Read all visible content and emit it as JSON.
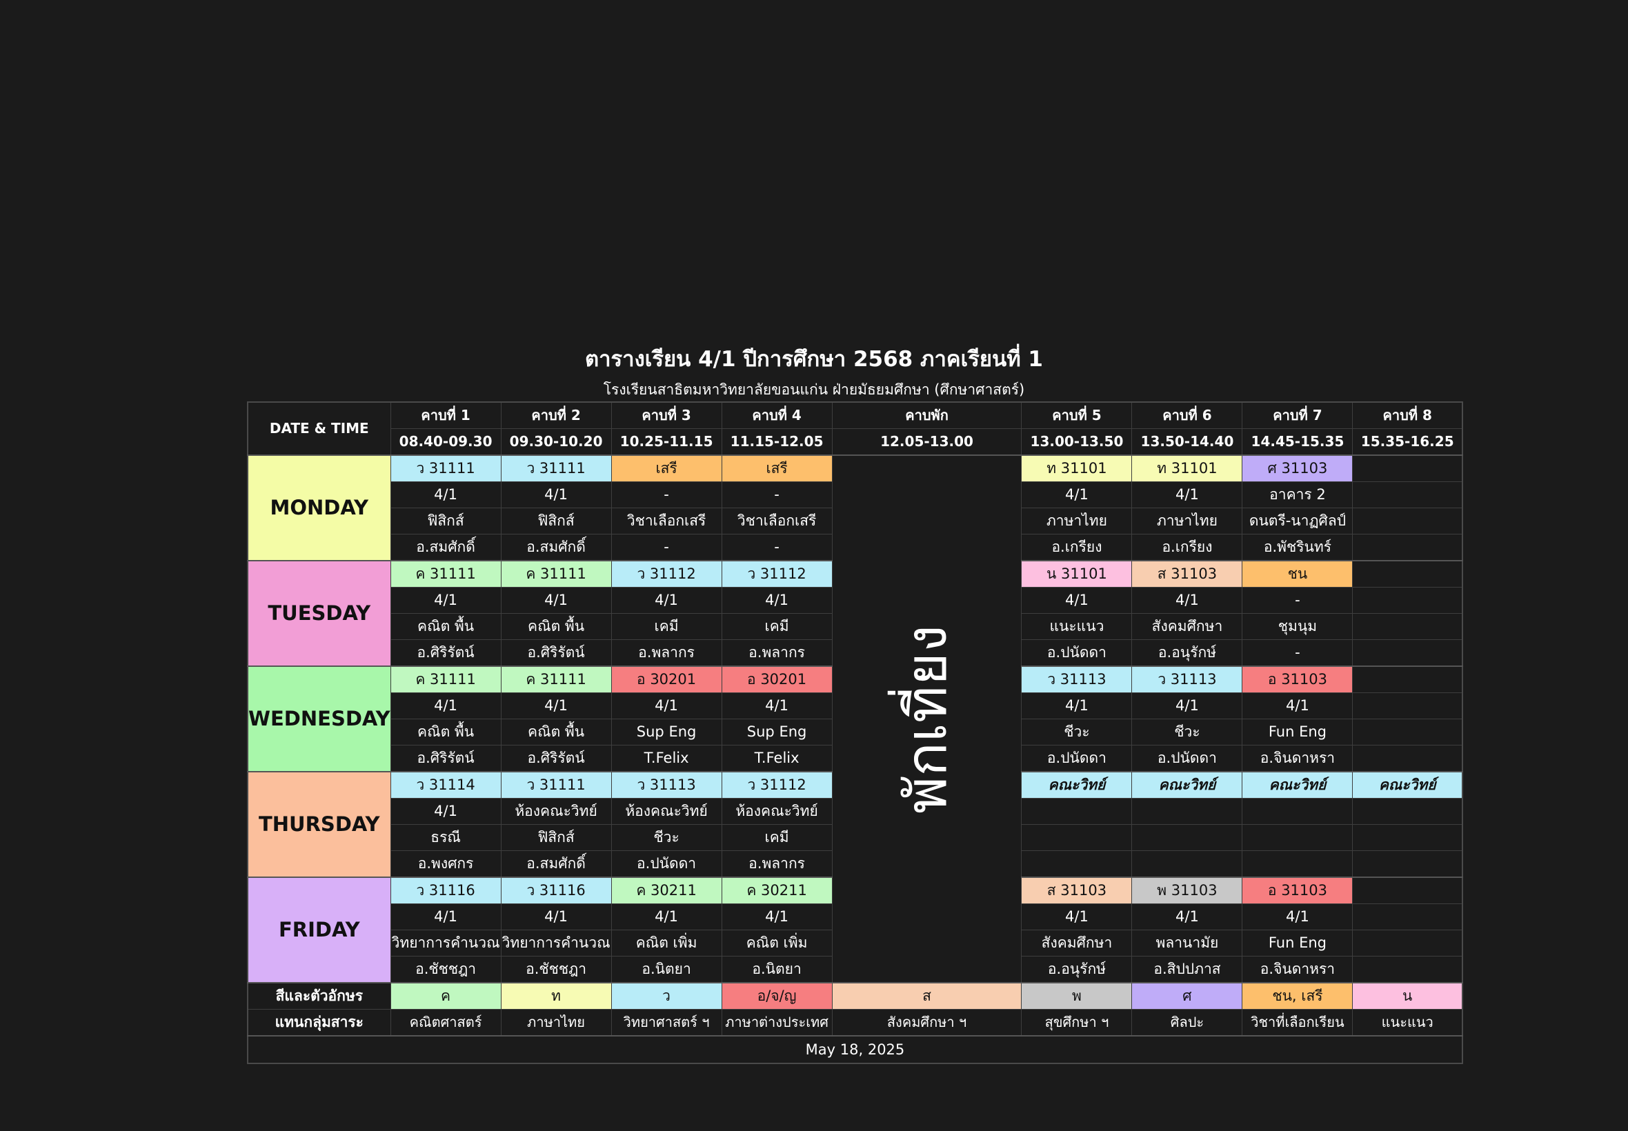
{
  "title": "ตารางเรียน 4/1 ปีการศึกษา 2568 ภาคเรียนที่ 1",
  "subtitle": "โรงเรียนสาธิตมหาวิทยาลัยขอนแก่น ฝ่ายมัธยมศึกษา (ศึกษาศาสตร์)",
  "header": {
    "date_time": "DATE & TIME",
    "periods": [
      {
        "name": "คาบที่ 1",
        "time": "08.40-09.30"
      },
      {
        "name": "คาบที่ 2",
        "time": "09.30-10.20"
      },
      {
        "name": "คาบที่ 3",
        "time": "10.25-11.15"
      },
      {
        "name": "คาบที่ 4",
        "time": "11.15-12.05"
      },
      {
        "name": "คาบพัก",
        "time": "12.05-13.00"
      },
      {
        "name": "คาบที่ 5",
        "time": "13.00-13.50"
      },
      {
        "name": "คาบที่ 6",
        "time": "13.50-14.40"
      },
      {
        "name": "คาบที่ 7",
        "time": "14.45-15.35"
      },
      {
        "name": "คาบที่ 8",
        "time": "15.35-16.25"
      }
    ]
  },
  "lunch_label": "พักเที่ยง",
  "days": [
    {
      "day": "MONDAY",
      "cells": [
        {
          "code": "ว 31111",
          "color": "#b8ecf8",
          "room": "4/1",
          "subject": "ฟิสิกส์",
          "teacher": "อ.สมศักดิ์"
        },
        {
          "code": "ว 31111",
          "color": "#b8ecf8",
          "room": "4/1",
          "subject": "ฟิสิกส์",
          "teacher": "อ.สมศักดิ์"
        },
        {
          "code": "เสรี",
          "color": "#fdbf6c",
          "room": "-",
          "subject": "วิชาเลือกเสรี",
          "teacher": "-"
        },
        {
          "code": "เสรี",
          "color": "#fdbf6c",
          "room": "-",
          "subject": "วิชาเลือกเสรี",
          "teacher": "-"
        },
        {
          "code": "ท 31101",
          "color": "#f7fbb4",
          "room": "4/1",
          "subject": "ภาษาไทย",
          "teacher": "อ.เกรียง"
        },
        {
          "code": "ท 31101",
          "color": "#f7fbb4",
          "room": "4/1",
          "subject": "ภาษาไทย",
          "teacher": "อ.เกรียง"
        },
        {
          "code": "ศ 31103",
          "color": "#bfacf8",
          "room": "อาคาร 2",
          "subject": "ดนตรี-นาฏศิลป์",
          "teacher": "อ.พัชรินทร์"
        },
        {
          "code": "",
          "color": "",
          "room": "",
          "subject": "",
          "teacher": ""
        }
      ]
    },
    {
      "day": "TUESDAY",
      "cells": [
        {
          "code": "ค 31111",
          "color": "#c0f8c0",
          "room": "4/1",
          "subject": "คณิต พื้น",
          "teacher": "อ.ศิริรัตน์"
        },
        {
          "code": "ค 31111",
          "color": "#c0f8c0",
          "room": "4/1",
          "subject": "คณิต พื้น",
          "teacher": "อ.ศิริรัตน์"
        },
        {
          "code": "ว 31112",
          "color": "#b8ecf8",
          "room": "4/1",
          "subject": "เคมี",
          "teacher": "อ.พลากร"
        },
        {
          "code": "ว 31112",
          "color": "#b8ecf8",
          "room": "4/1",
          "subject": "เคมี",
          "teacher": "อ.พลากร"
        },
        {
          "code": "น 31101",
          "color": "#fdc0e0",
          "room": "4/1",
          "subject": "แนะแนว",
          "teacher": "อ.ปนัดดา"
        },
        {
          "code": "ส 31103",
          "color": "#f8ceb0",
          "room": "4/1",
          "subject": "สังคมศึกษา",
          "teacher": "อ.อนุรักษ์"
        },
        {
          "code": "ชน",
          "color": "#fdbf6c",
          "room": "-",
          "subject": "ชุมนุม",
          "teacher": "-"
        },
        {
          "code": "",
          "color": "",
          "room": "",
          "subject": "",
          "teacher": ""
        }
      ]
    },
    {
      "day": "WEDNESDAY",
      "cells": [
        {
          "code": "ค 31111",
          "color": "#c0f8c0",
          "room": "4/1",
          "subject": "คณิต พื้น",
          "teacher": "อ.ศิริรัตน์"
        },
        {
          "code": "ค 31111",
          "color": "#c0f8c0",
          "room": "4/1",
          "subject": "คณิต พื้น",
          "teacher": "อ.ศิริรัตน์"
        },
        {
          "code": "อ 30201",
          "color": "#f67e80",
          "room": "4/1",
          "subject": "Sup Eng",
          "teacher": "T.Felix"
        },
        {
          "code": "อ 30201",
          "color": "#f67e80",
          "room": "4/1",
          "subject": "Sup Eng",
          "teacher": "T.Felix"
        },
        {
          "code": "ว 31113",
          "color": "#b8ecf8",
          "room": "4/1",
          "subject": "ชีวะ",
          "teacher": "อ.ปนัดดา"
        },
        {
          "code": "ว 31113",
          "color": "#b8ecf8",
          "room": "4/1",
          "subject": "ชีวะ",
          "teacher": "อ.ปนัดดา"
        },
        {
          "code": "อ 31103",
          "color": "#f67e80",
          "room": "4/1",
          "subject": "Fun Eng",
          "teacher": "อ.จินดาหรา"
        },
        {
          "code": "",
          "color": "",
          "room": "",
          "subject": "",
          "teacher": ""
        }
      ]
    },
    {
      "day": "THURSDAY",
      "cells": [
        {
          "code": "ว 31114",
          "color": "#b8ecf8",
          "room": "4/1",
          "subject": "ธรณี",
          "teacher": "อ.พงศกร"
        },
        {
          "code": "ว 31111",
          "color": "#b8ecf8",
          "room": "ห้องคณะวิทย์",
          "subject": "ฟิสิกส์",
          "teacher": "อ.สมศักดิ์"
        },
        {
          "code": "ว 31113",
          "color": "#b8ecf8",
          "room": "ห้องคณะวิทย์",
          "subject": "ชีวะ",
          "teacher": "อ.ปนัดดา"
        },
        {
          "code": "ว 31112",
          "color": "#b8ecf8",
          "room": "ห้องคณะวิทย์",
          "subject": "เคมี",
          "teacher": "อ.พลากร"
        },
        {
          "code": "คณะวิทย์",
          "color": "#b8ecf8",
          "group": true,
          "room": "",
          "subject": "",
          "teacher": ""
        },
        {
          "code": "คณะวิทย์",
          "color": "#b8ecf8",
          "group": true,
          "room": "",
          "subject": "",
          "teacher": ""
        },
        {
          "code": "คณะวิทย์",
          "color": "#b8ecf8",
          "group": true,
          "room": "",
          "subject": "",
          "teacher": ""
        },
        {
          "code": "คณะวิทย์",
          "color": "#b8ecf8",
          "group": true,
          "room": "",
          "subject": "",
          "teacher": ""
        }
      ]
    },
    {
      "day": "FRIDAY",
      "cells": [
        {
          "code": "ว 31116",
          "color": "#b8ecf8",
          "room": "4/1",
          "subject": "วิทยาการคำนวณ",
          "teacher": "อ.ชัชชฎา"
        },
        {
          "code": "ว 31116",
          "color": "#b8ecf8",
          "room": "4/1",
          "subject": "วิทยาการคำนวณ",
          "teacher": "อ.ชัชชฎา"
        },
        {
          "code": "ค 30211",
          "color": "#c0f8c0",
          "room": "4/1",
          "subject": "คณิต เพิ่ม",
          "teacher": "อ.นิตยา"
        },
        {
          "code": "ค 30211",
          "color": "#c0f8c0",
          "room": "4/1",
          "subject": "คณิต เพิ่ม",
          "teacher": "อ.นิตยา"
        },
        {
          "code": "ส 31103",
          "color": "#f8ceb0",
          "room": "4/1",
          "subject": "สังคมศึกษา",
          "teacher": "อ.อนุรักษ์"
        },
        {
          "code": "พ 31103",
          "color": "#c8c8c8",
          "room": "4/1",
          "subject": "พลานามัย",
          "teacher": "อ.สิปปภาส"
        },
        {
          "code": "อ 31103",
          "color": "#f67e80",
          "room": "4/1",
          "subject": "Fun Eng",
          "teacher": "อ.จินดาหรา"
        },
        {
          "code": "",
          "color": "",
          "room": "",
          "subject": "",
          "teacher": ""
        }
      ]
    }
  ],
  "legend": {
    "label_line1": "สีและตัวอักษร",
    "label_line2": "แทนกลุ่มสาระ",
    "items": [
      {
        "code": "ค",
        "name": "คณิตศาสตร์",
        "color": "#c0f8c0"
      },
      {
        "code": "ท",
        "name": "ภาษาไทย",
        "color": "#f7fbb4"
      },
      {
        "code": "ว",
        "name": "วิทยาศาสตร์ ฯ",
        "color": "#b8ecf8"
      },
      {
        "code": "อ/จ/ญ",
        "name": "ภาษาต่างประเทศ",
        "color": "#f67e80"
      },
      {
        "code": "ส",
        "name": "สังคมศึกษา ฯ",
        "color": "#f8ceb0"
      },
      {
        "code": "พ",
        "name": "สุขศึกษา ฯ",
        "color": "#c8c8c8"
      },
      {
        "code": "ศ",
        "name": "ศิลปะ",
        "color": "#bfacf8"
      },
      {
        "code": "ชน, เสรี",
        "name": "วิชาที่เลือกเรียน",
        "color": "#fdbf6c"
      },
      {
        "code": "น",
        "name": "แนะแนว",
        "color": "#fdc0e0"
      }
    ]
  },
  "footer_date": "May 18, 2025",
  "day_colors": {
    "MONDAY": "#f4fca6",
    "TUESDAY": "#f29ed6",
    "WEDNESDAY": "#a8f7aa",
    "THURSDAY": "#fbbf9c",
    "FRIDAY": "#d8b0f8"
  }
}
